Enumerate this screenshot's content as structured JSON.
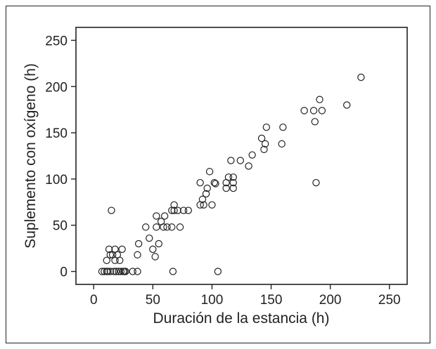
{
  "chart_data": {
    "type": "scatter",
    "title": "",
    "xlabel": "Duración de la estancia (h)",
    "ylabel": "Suplemento con oxígeno (h)",
    "xlim": [
      -15,
      265
    ],
    "ylim": [
      -14,
      264
    ],
    "xticks": [
      0,
      50,
      100,
      150,
      200,
      250
    ],
    "yticks": [
      0,
      50,
      100,
      150,
      200,
      250
    ],
    "grid": false,
    "legend": "none",
    "marker": "open-circle",
    "colors": {
      "stroke": "#222222",
      "frame": "#222222",
      "background": "#ffffff"
    },
    "series": [
      {
        "points": [
          [
            7,
            0
          ],
          [
            9,
            0
          ],
          [
            11,
            0
          ],
          [
            12,
            0
          ],
          [
            14,
            0
          ],
          [
            17,
            0
          ],
          [
            19,
            0
          ],
          [
            21,
            0
          ],
          [
            23,
            0
          ],
          [
            25,
            0
          ],
          [
            26,
            0
          ],
          [
            27,
            0
          ],
          [
            33,
            0
          ],
          [
            37,
            0
          ],
          [
            67,
            0
          ],
          [
            105,
            0
          ],
          [
            11,
            12
          ],
          [
            14,
            18
          ],
          [
            13,
            24
          ],
          [
            16,
            18
          ],
          [
            18,
            12
          ],
          [
            18,
            24
          ],
          [
            20,
            18
          ],
          [
            22,
            12
          ],
          [
            24,
            24
          ],
          [
            15,
            66
          ],
          [
            37,
            18
          ],
          [
            38,
            30
          ],
          [
            44,
            48
          ],
          [
            47,
            36
          ],
          [
            50,
            24
          ],
          [
            52,
            16
          ],
          [
            53,
            48
          ],
          [
            53,
            60
          ],
          [
            55,
            30
          ],
          [
            57,
            54
          ],
          [
            59,
            48
          ],
          [
            60,
            60
          ],
          [
            62,
            48
          ],
          [
            66,
            48
          ],
          [
            66,
            66
          ],
          [
            68,
            72
          ],
          [
            68,
            66
          ],
          [
            71,
            66
          ],
          [
            73,
            48
          ],
          [
            76,
            66
          ],
          [
            80,
            66
          ],
          [
            90,
            72
          ],
          [
            90,
            96
          ],
          [
            92,
            78
          ],
          [
            93,
            72
          ],
          [
            95,
            84
          ],
          [
            96,
            90
          ],
          [
            98,
            108
          ],
          [
            100,
            72
          ],
          [
            102,
            96
          ],
          [
            103,
            95
          ],
          [
            112,
            96
          ],
          [
            112,
            90
          ],
          [
            114,
            102
          ],
          [
            116,
            120
          ],
          [
            118,
            90
          ],
          [
            118,
            96
          ],
          [
            118,
            102
          ],
          [
            124,
            120
          ],
          [
            131,
            114
          ],
          [
            134,
            126
          ],
          [
            142,
            144
          ],
          [
            144,
            132
          ],
          [
            145,
            138
          ],
          [
            146,
            156
          ],
          [
            159,
            138
          ],
          [
            160,
            156
          ],
          [
            178,
            174
          ],
          [
            186,
            174
          ],
          [
            187,
            162
          ],
          [
            188,
            96
          ],
          [
            191,
            186
          ],
          [
            193,
            174
          ],
          [
            214,
            180
          ],
          [
            226,
            210
          ]
        ]
      }
    ]
  }
}
